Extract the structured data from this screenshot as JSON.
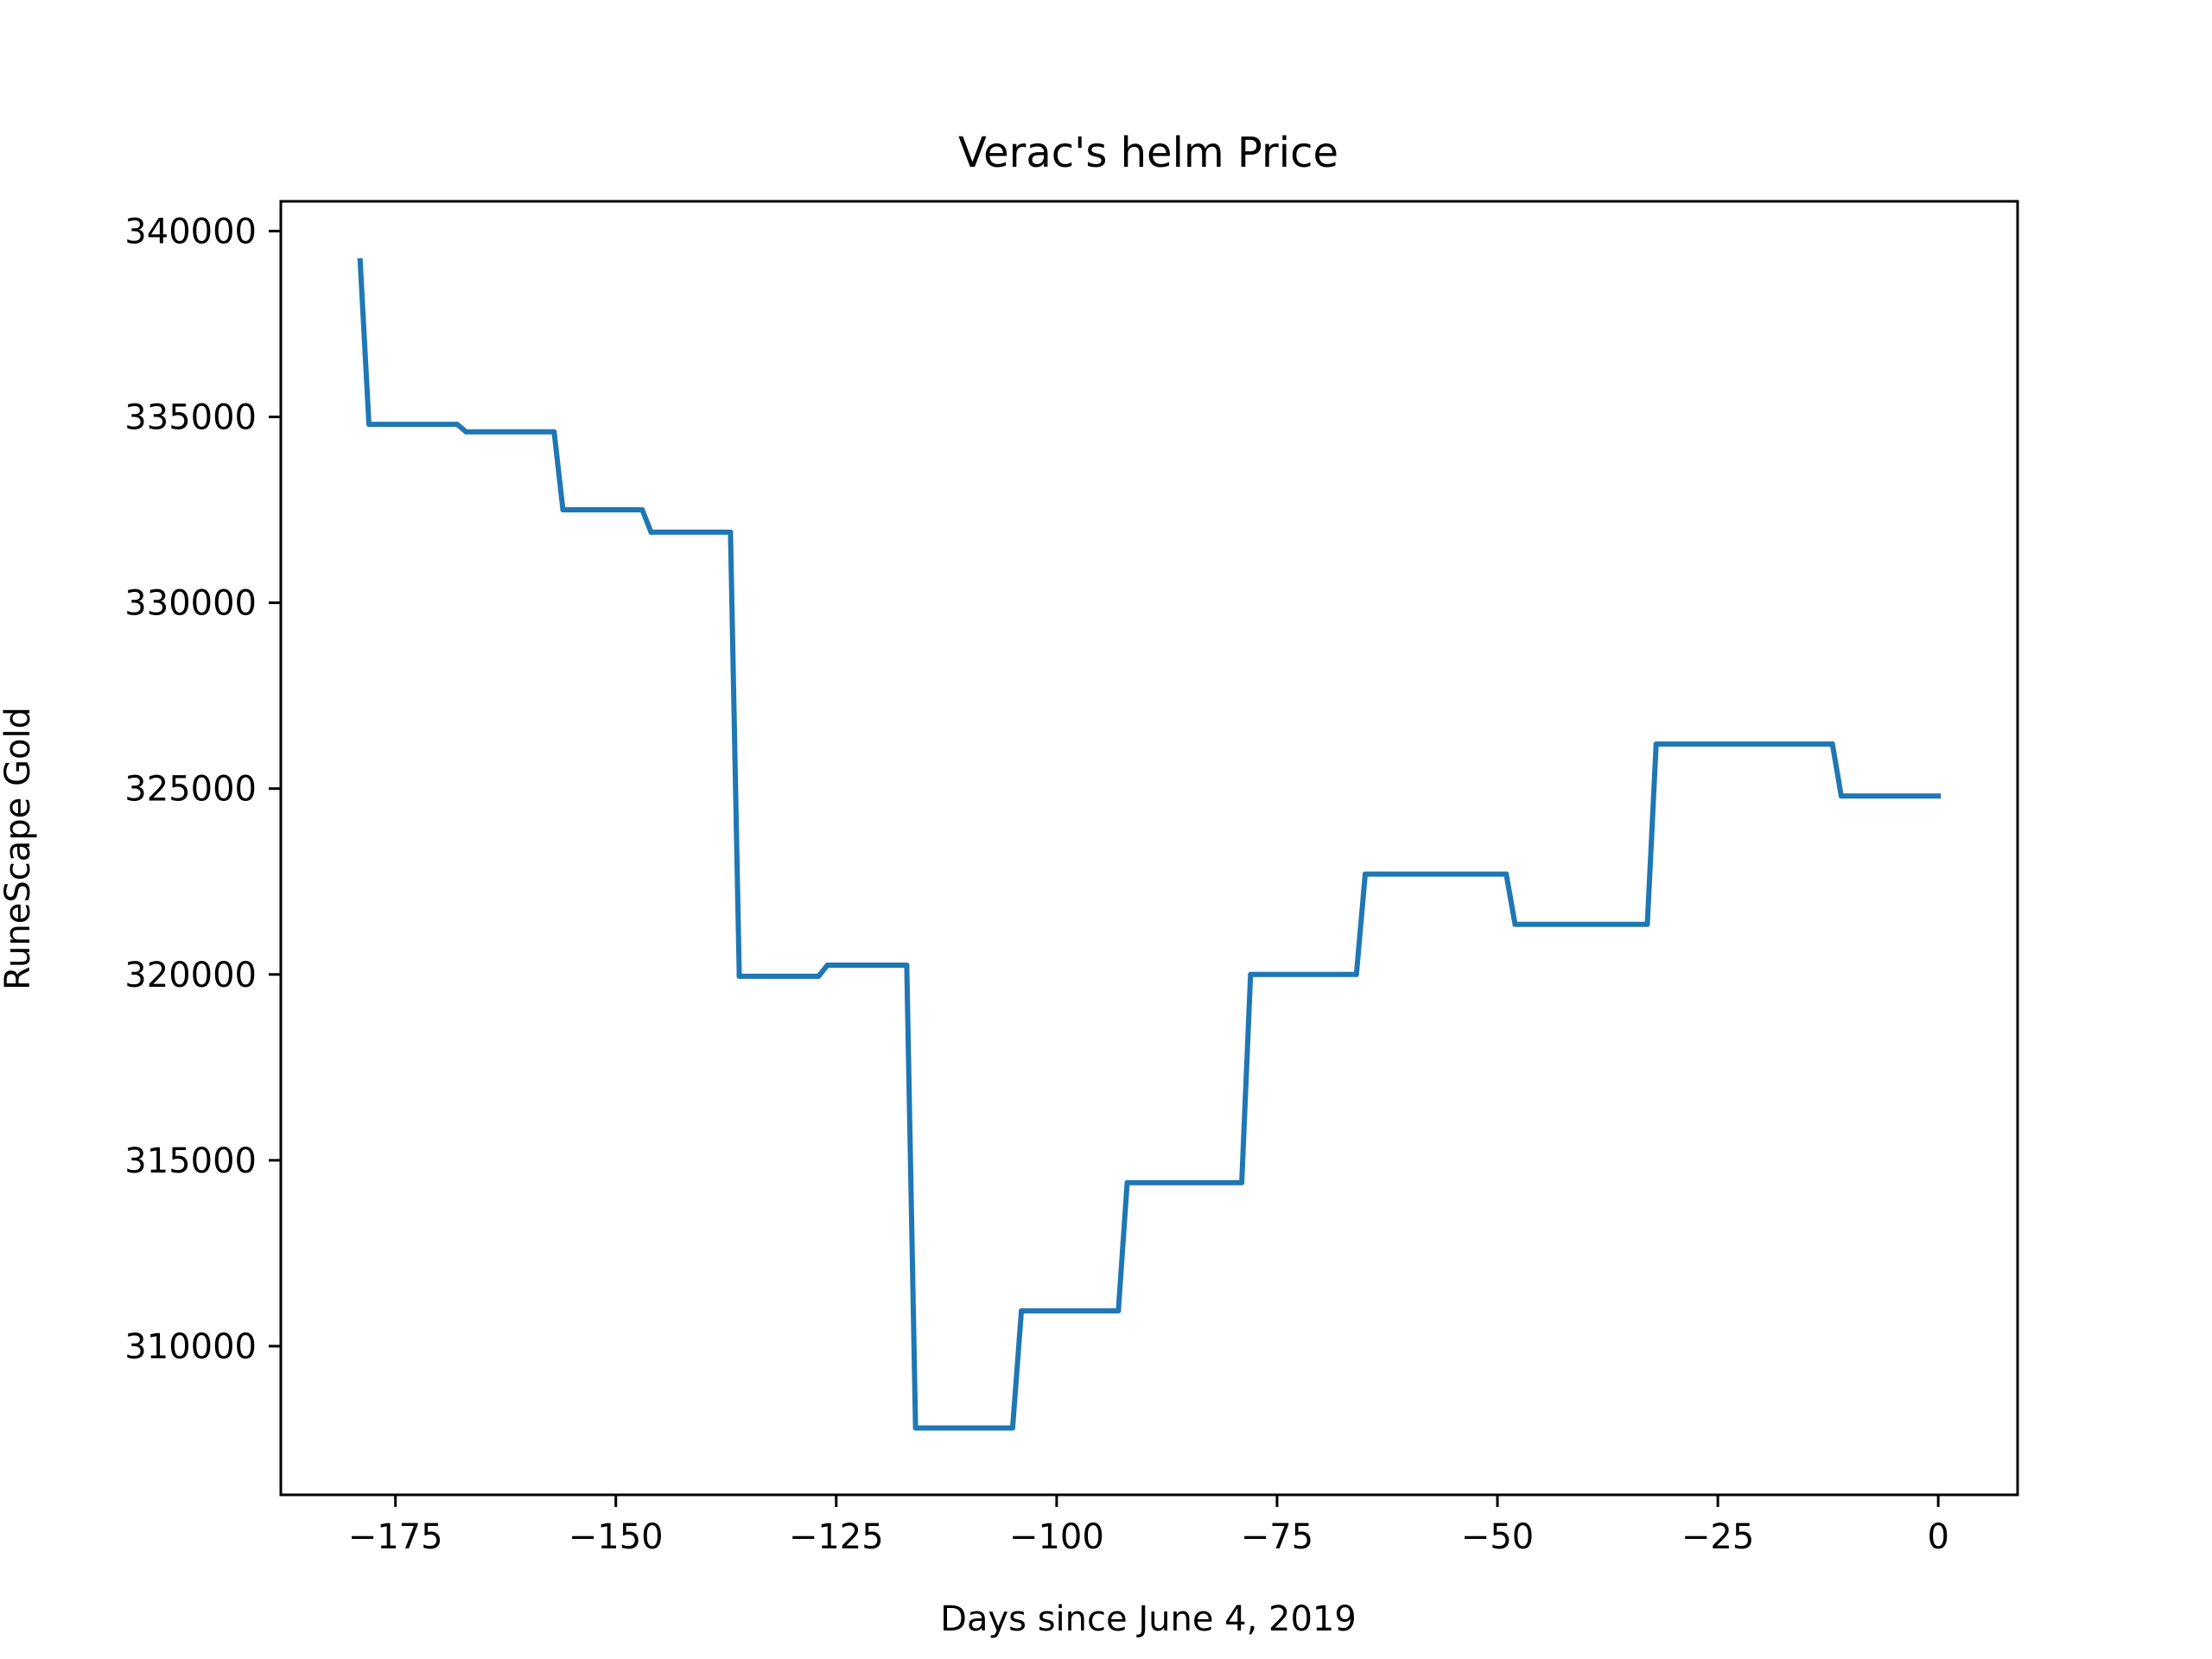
{
  "chart_data": {
    "type": "line",
    "title": "Verac's helm Price",
    "xlabel": "Days since June 4, 2019",
    "ylabel": "RuneScape Gold",
    "xlim": [
      -188,
      9
    ],
    "ylim": [
      306000,
      340800
    ],
    "xticks": [
      -175,
      -150,
      -125,
      -100,
      -75,
      -50,
      -25,
      0
    ],
    "xtick_labels": [
      "−175",
      "−150",
      "−125",
      "−100",
      "−75",
      "−50",
      "−25",
      "0"
    ],
    "yticks": [
      310000,
      315000,
      320000,
      325000,
      330000,
      335000,
      340000
    ],
    "ytick_labels": [
      "310000",
      "315000",
      "320000",
      "325000",
      "330000",
      "335000",
      "340000"
    ],
    "grid": false,
    "series": [
      {
        "color": "#1f77b4",
        "x": [
          -179,
          -178,
          -168,
          -167,
          -157,
          -156,
          -147,
          -146,
          -137,
          -136,
          -127,
          -126,
          -117,
          -116,
          -105,
          -104,
          -93,
          -92,
          -79,
          -78,
          -66,
          -65,
          -49,
          -48,
          -33,
          -32,
          -12,
          -11,
          0
        ],
        "y": [
          339200,
          334800,
          334800,
          334600,
          334600,
          332500,
          332500,
          331900,
          331900,
          319950,
          319950,
          320250,
          320250,
          307800,
          307800,
          310950,
          310950,
          314400,
          314400,
          320000,
          320000,
          322700,
          322700,
          321350,
          321350,
          326200,
          326200,
          324800,
          324800
        ]
      }
    ]
  }
}
